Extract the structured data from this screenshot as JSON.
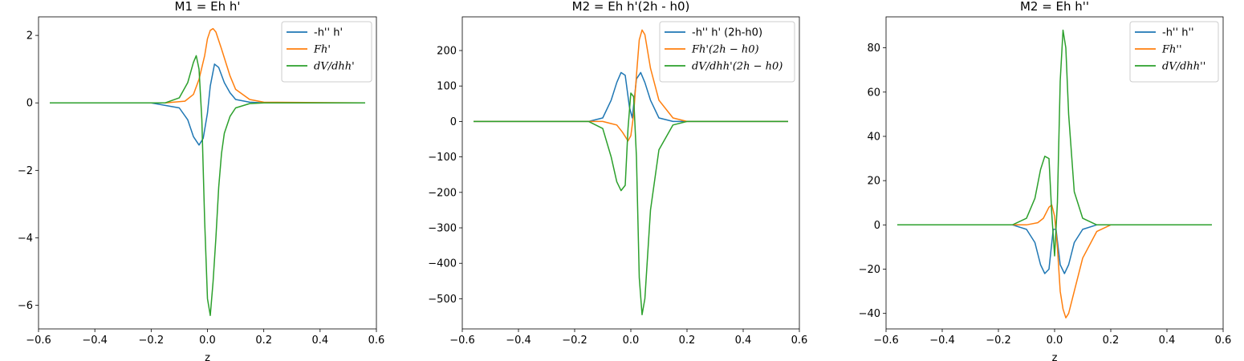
{
  "colors": {
    "blue": "#1f77b4",
    "orange": "#ff7f0e",
    "green": "#2ca02c"
  },
  "chart_data": [
    {
      "type": "line",
      "title": "M1 = Eh h'",
      "xlabel": "z",
      "ylabel": "",
      "xlim": [
        -0.6,
        0.6
      ],
      "ylim": [
        -6.7,
        2.55
      ],
      "xticks": [
        -0.6,
        -0.4,
        -0.2,
        0.0,
        0.2,
        0.4,
        0.6
      ],
      "xtick_labels": [
        "−0.6",
        "−0.4",
        "−0.2",
        "0.0",
        "0.2",
        "0.4",
        "0.6"
      ],
      "yticks": [
        -6,
        -4,
        -2,
        0,
        2
      ],
      "ytick_labels": [
        "−6",
        "−4",
        "−2",
        "0",
        "2"
      ],
      "legend": "top-right",
      "series": [
        {
          "name": "-h'' h'",
          "color": "#1f77b4",
          "x": [
            -0.56,
            -0.2,
            -0.1,
            -0.07,
            -0.05,
            -0.03,
            -0.015,
            0.0,
            0.01,
            0.025,
            0.04,
            0.06,
            0.08,
            0.1,
            0.15,
            0.2,
            0.56
          ],
          "y": [
            0,
            0,
            -0.15,
            -0.5,
            -1.0,
            -1.25,
            -1.05,
            -0.3,
            0.5,
            1.15,
            1.05,
            0.6,
            0.3,
            0.1,
            0.02,
            0,
            0
          ]
        },
        {
          "name": "Fh'",
          "color": "#ff7f0e",
          "x": [
            -0.56,
            -0.15,
            -0.08,
            -0.05,
            -0.03,
            -0.01,
            0.0,
            0.01,
            0.02,
            0.03,
            0.05,
            0.08,
            0.1,
            0.15,
            0.2,
            0.56
          ],
          "y": [
            0,
            0,
            0.05,
            0.25,
            0.7,
            1.4,
            1.9,
            2.15,
            2.2,
            2.1,
            1.6,
            0.8,
            0.4,
            0.1,
            0.02,
            0
          ],
          "legend_italic": true
        },
        {
          "name": "dV/dhh'",
          "color": "#2ca02c",
          "x": [
            -0.56,
            -0.15,
            -0.1,
            -0.07,
            -0.05,
            -0.04,
            -0.03,
            -0.02,
            -0.01,
            0.0,
            0.01,
            0.02,
            0.03,
            0.04,
            0.05,
            0.06,
            0.08,
            0.1,
            0.15,
            0.2,
            0.56
          ],
          "y": [
            0,
            0,
            0.15,
            0.6,
            1.2,
            1.4,
            1.0,
            -0.5,
            -3.5,
            -5.8,
            -6.3,
            -5.3,
            -4.0,
            -2.5,
            -1.5,
            -0.9,
            -0.4,
            -0.15,
            -0.02,
            0,
            0
          ],
          "legend_italic": true
        }
      ]
    },
    {
      "type": "line",
      "title": "M2 = Eh h'(2h - h0)",
      "xlabel": "",
      "ylabel": "",
      "xlim": [
        -0.6,
        0.6
      ],
      "ylim": [
        -585,
        295
      ],
      "xticks": [
        -0.6,
        -0.4,
        -0.2,
        0.0,
        0.2,
        0.4,
        0.6
      ],
      "xtick_labels": [
        "−0.6",
        "−0.4",
        "−0.2",
        "0.0",
        "0.2",
        "0.4",
        "0.6"
      ],
      "yticks": [
        -500,
        -400,
        -300,
        -200,
        -100,
        0,
        100,
        200
      ],
      "ytick_labels": [
        "−500",
        "−400",
        "−300",
        "−200",
        "−100",
        "0",
        "100",
        "200"
      ],
      "legend": "top-right",
      "series": [
        {
          "name": "-h'' h' (2h-h0)",
          "color": "#1f77b4",
          "x": [
            -0.56,
            -0.15,
            -0.1,
            -0.07,
            -0.05,
            -0.035,
            -0.02,
            -0.005,
            0.005,
            0.02,
            0.035,
            0.05,
            0.07,
            0.1,
            0.15,
            0.56
          ],
          "y": [
            0,
            0,
            10,
            60,
            110,
            138,
            130,
            40,
            10,
            120,
            138,
            110,
            60,
            10,
            0,
            0
          ]
        },
        {
          "name": "Fh'(2h − h0)",
          "color": "#ff7f0e",
          "x": [
            -0.56,
            -0.1,
            -0.05,
            -0.03,
            -0.01,
            0.0,
            0.01,
            0.02,
            0.03,
            0.04,
            0.05,
            0.07,
            0.1,
            0.15,
            0.2,
            0.56
          ],
          "y": [
            0,
            0,
            -10,
            -30,
            -55,
            -40,
            20,
            130,
            230,
            258,
            245,
            150,
            60,
            10,
            0,
            0
          ],
          "legend_italic": true
        },
        {
          "name": "dV/dhh'(2h − h0)",
          "color": "#2ca02c",
          "x": [
            -0.56,
            -0.15,
            -0.1,
            -0.07,
            -0.05,
            -0.035,
            -0.02,
            -0.01,
            0.0,
            0.01,
            0.02,
            0.03,
            0.04,
            0.05,
            0.07,
            0.1,
            0.15,
            0.2,
            0.56
          ],
          "y": [
            0,
            0,
            -20,
            -100,
            -170,
            -195,
            -180,
            -20,
            80,
            70,
            -100,
            -440,
            -545,
            -500,
            -250,
            -80,
            -10,
            0,
            0
          ],
          "legend_italic": true
        }
      ]
    },
    {
      "type": "line",
      "title": "M2 = Eh h''",
      "xlabel": "z",
      "ylabel": "",
      "xlim": [
        -0.6,
        0.6
      ],
      "ylim": [
        -47,
        94
      ],
      "xticks": [
        -0.6,
        -0.4,
        -0.2,
        0.0,
        0.2,
        0.4,
        0.6
      ],
      "xtick_labels": [
        "−0.6",
        "−0.4",
        "−0.2",
        "0.0",
        "0.2",
        "0.4",
        "0.6"
      ],
      "yticks": [
        -40,
        -20,
        0,
        20,
        40,
        60,
        80
      ],
      "ytick_labels": [
        "−40",
        "−20",
        "0",
        "20",
        "40",
        "60",
        "80"
      ],
      "legend": "top-right",
      "series": [
        {
          "name": "-h'' h''",
          "color": "#1f77b4",
          "x": [
            -0.56,
            -0.15,
            -0.1,
            -0.07,
            -0.05,
            -0.035,
            -0.02,
            -0.005,
            0.005,
            0.02,
            0.035,
            0.05,
            0.07,
            0.1,
            0.15,
            0.56
          ],
          "y": [
            0,
            0,
            -2,
            -8,
            -18,
            -22,
            -20,
            -2,
            -2,
            -18,
            -22,
            -18,
            -8,
            -2,
            0,
            0
          ]
        },
        {
          "name": "Fh''",
          "color": "#ff7f0e",
          "x": [
            -0.56,
            -0.1,
            -0.06,
            -0.04,
            -0.02,
            -0.01,
            0.0,
            0.01,
            0.02,
            0.03,
            0.04,
            0.05,
            0.07,
            0.1,
            0.15,
            0.2,
            0.56
          ],
          "y": [
            0,
            0,
            1,
            3,
            8,
            9,
            4,
            -10,
            -30,
            -38,
            -42,
            -40,
            -30,
            -15,
            -3,
            0,
            0
          ],
          "legend_italic": true
        },
        {
          "name": "dV/dhh''",
          "color": "#2ca02c",
          "x": [
            -0.56,
            -0.15,
            -0.1,
            -0.07,
            -0.05,
            -0.035,
            -0.02,
            -0.01,
            0.0,
            0.01,
            0.02,
            0.03,
            0.04,
            0.05,
            0.07,
            0.1,
            0.15,
            0.2,
            0.56
          ],
          "y": [
            0,
            0,
            3,
            12,
            25,
            31,
            30,
            5,
            -14,
            10,
            65,
            88,
            80,
            50,
            15,
            3,
            0,
            0,
            0
          ],
          "legend_italic": true
        }
      ]
    }
  ]
}
